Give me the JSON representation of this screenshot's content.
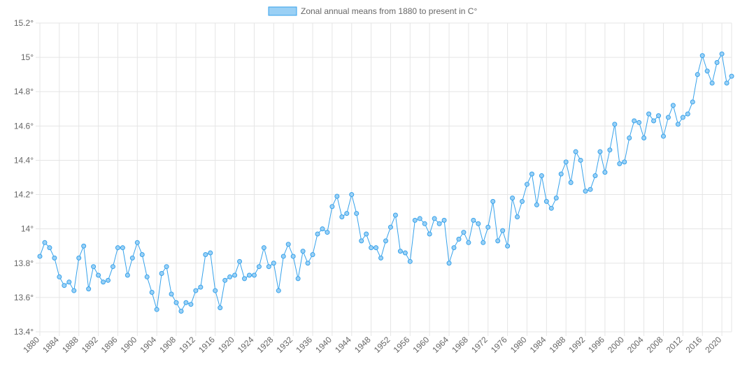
{
  "chart_data": {
    "type": "line",
    "legend": "Zonal annual means from 1880 to present in C°",
    "legend_position": "top-center",
    "grid": true,
    "colors": {
      "line": "#36a2eb",
      "point_fill": "#9ad0f5",
      "grid": "#e5e5e5",
      "text": "#666666"
    },
    "x": [
      1880,
      1881,
      1882,
      1883,
      1884,
      1885,
      1886,
      1887,
      1888,
      1889,
      1890,
      1891,
      1892,
      1893,
      1894,
      1895,
      1896,
      1897,
      1898,
      1899,
      1900,
      1901,
      1902,
      1903,
      1904,
      1905,
      1906,
      1907,
      1908,
      1909,
      1910,
      1911,
      1912,
      1913,
      1914,
      1915,
      1916,
      1917,
      1918,
      1919,
      1920,
      1921,
      1922,
      1923,
      1924,
      1925,
      1926,
      1927,
      1928,
      1929,
      1930,
      1931,
      1932,
      1933,
      1934,
      1935,
      1936,
      1937,
      1938,
      1939,
      1940,
      1941,
      1942,
      1943,
      1944,
      1945,
      1946,
      1947,
      1948,
      1949,
      1950,
      1951,
      1952,
      1953,
      1954,
      1955,
      1956,
      1957,
      1958,
      1959,
      1960,
      1961,
      1962,
      1963,
      1964,
      1965,
      1966,
      1967,
      1968,
      1969,
      1970,
      1971,
      1972,
      1973,
      1974,
      1975,
      1976,
      1977,
      1978,
      1979,
      1980,
      1981,
      1982,
      1983,
      1984,
      1985,
      1986,
      1987,
      1988,
      1989,
      1990,
      1991,
      1992,
      1993,
      1994,
      1995,
      1996,
      1997,
      1998,
      1999,
      2000,
      2001,
      2002,
      2003,
      2004,
      2005,
      2006,
      2007,
      2008,
      2009,
      2010,
      2011,
      2012,
      2013,
      2014,
      2015,
      2016,
      2017,
      2018,
      2019,
      2020,
      2021,
      2022
    ],
    "values": [
      13.84,
      13.92,
      13.89,
      13.83,
      13.72,
      13.67,
      13.69,
      13.64,
      13.83,
      13.9,
      13.65,
      13.78,
      13.73,
      13.69,
      13.7,
      13.78,
      13.89,
      13.89,
      13.73,
      13.83,
      13.92,
      13.85,
      13.72,
      13.63,
      13.53,
      13.74,
      13.78,
      13.62,
      13.57,
      13.52,
      13.57,
      13.56,
      13.64,
      13.66,
      13.85,
      13.86,
      13.64,
      13.54,
      13.7,
      13.72,
      13.73,
      13.81,
      13.71,
      13.73,
      13.73,
      13.78,
      13.89,
      13.78,
      13.8,
      13.64,
      13.84,
      13.91,
      13.84,
      13.71,
      13.87,
      13.8,
      13.85,
      13.97,
      14.0,
      13.98,
      14.13,
      14.19,
      14.07,
      14.09,
      14.2,
      14.09,
      13.93,
      13.97,
      13.89,
      13.89,
      13.83,
      13.93,
      14.01,
      14.08,
      13.87,
      13.86,
      13.81,
      14.05,
      14.06,
      14.03,
      13.97,
      14.06,
      14.03,
      14.05,
      13.8,
      13.89,
      13.94,
      13.98,
      13.92,
      14.05,
      14.03,
      13.92,
      14.01,
      14.16,
      13.93,
      13.99,
      13.9,
      14.18,
      14.07,
      14.16,
      14.26,
      14.32,
      14.14,
      14.31,
      14.16,
      14.12,
      14.18,
      14.32,
      14.39,
      14.27,
      14.45,
      14.4,
      14.22,
      14.23,
      14.31,
      14.45,
      14.33,
      14.46,
      14.61,
      14.38,
      14.39,
      14.53,
      14.63,
      14.62,
      14.53,
      14.67,
      14.63,
      14.66,
      14.54,
      14.65,
      14.72,
      14.61,
      14.65,
      14.67,
      14.74,
      14.9,
      15.01,
      14.92,
      14.85,
      14.97,
      15.02,
      14.85,
      14.89
    ],
    "ylim": [
      13.4,
      15.2
    ],
    "y_ticks": [
      "15.2°",
      "15°",
      "14.8°",
      "14.6°",
      "14.4°",
      "14.2°",
      "14°",
      "13.8°",
      "13.6°",
      "13.4°"
    ],
    "x_tick_labels": [
      "1880",
      "1884",
      "1888",
      "1892",
      "1896",
      "1900",
      "1904",
      "1908",
      "1912",
      "1916",
      "1920",
      "1924",
      "1928",
      "1932",
      "1936",
      "1940",
      "1944",
      "1948",
      "1952",
      "1956",
      "1960",
      "1964",
      "1968",
      "1972",
      "1976",
      "1980",
      "1984",
      "1988",
      "1992",
      "1996",
      "2000",
      "2004",
      "2008",
      "2012",
      "2016",
      "2020"
    ]
  }
}
